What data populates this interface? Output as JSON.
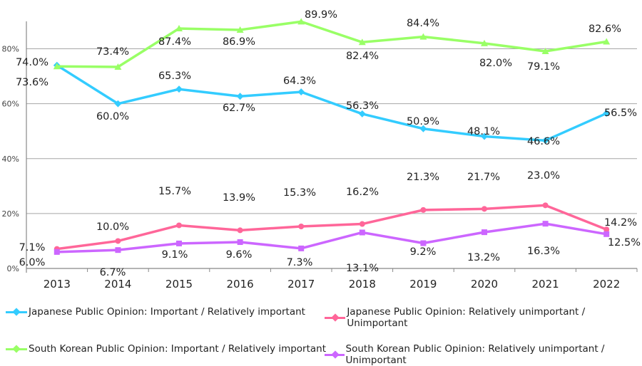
{
  "chart_data": {
    "type": "line",
    "categories": [
      "2013",
      "2014",
      "2015",
      "2016",
      "2017",
      "2018",
      "2019",
      "2020",
      "2021",
      "2022"
    ],
    "ylim": [
      0,
      90
    ],
    "yticks": [
      0,
      20,
      40,
      60,
      80
    ],
    "ytick_labels": [
      "0%",
      "20%",
      "40%",
      "60%",
      "80%"
    ],
    "grid": true,
    "legend_placement": "bottom",
    "series": [
      {
        "name": "Japanese Public Opinion: Important / Relatively important",
        "color": "#33ccff",
        "marker": "diamond",
        "values": [
          74.0,
          60.0,
          65.3,
          62.7,
          64.3,
          56.3,
          50.9,
          48.1,
          46.6,
          56.5
        ]
      },
      {
        "name": "Japanese Public Opinion: Relatively unimportant / Unimportant",
        "color": "#ff6699",
        "marker": "circle",
        "values": [
          7.1,
          10.0,
          15.7,
          13.9,
          15.3,
          16.2,
          21.3,
          21.7,
          23.0,
          14.2
        ]
      },
      {
        "name": "South Korean Public Opinion: Important / Relatively important",
        "color": "#99ff66",
        "marker": "triangle",
        "values": [
          73.6,
          73.4,
          87.4,
          86.9,
          89.9,
          82.4,
          84.4,
          82.0,
          79.1,
          82.6
        ]
      },
      {
        "name": "South Korean Public Opinion: Relatively unimportant / Unimportant",
        "color": "#cc66ff",
        "marker": "square",
        "values": [
          6.0,
          6.7,
          9.1,
          9.6,
          7.3,
          13.1,
          9.2,
          13.2,
          16.3,
          12.5
        ]
      }
    ]
  }
}
